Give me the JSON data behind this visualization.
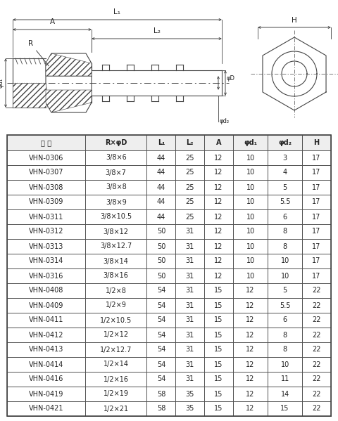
{
  "headers": [
    "型 式",
    "R×φD",
    "L₁",
    "L₂",
    "A",
    "φd₁",
    "φd₂",
    "H"
  ],
  "rows": [
    [
      "VHN-0306",
      "3/8×6",
      "44",
      "25",
      "12",
      "10",
      "3",
      "17"
    ],
    [
      "VHN-0307",
      "3/8×7",
      "44",
      "25",
      "12",
      "10",
      "4",
      "17"
    ],
    [
      "VHN-0308",
      "3/8×8",
      "44",
      "25",
      "12",
      "10",
      "5",
      "17"
    ],
    [
      "VHN-0309",
      "3/8×9",
      "44",
      "25",
      "12",
      "10",
      "5.5",
      "17"
    ],
    [
      "VHN-0311",
      "3/8×10.5",
      "44",
      "25",
      "12",
      "10",
      "6",
      "17"
    ],
    [
      "VHN-0312",
      "3/8×12",
      "50",
      "31",
      "12",
      "10",
      "8",
      "17"
    ],
    [
      "VHN-0313",
      "3/8×12.7",
      "50",
      "31",
      "12",
      "10",
      "8",
      "17"
    ],
    [
      "VHN-0314",
      "3/8×14",
      "50",
      "31",
      "12",
      "10",
      "10",
      "17"
    ],
    [
      "VHN-0316",
      "3/8×16",
      "50",
      "31",
      "12",
      "10",
      "10",
      "17"
    ],
    [
      "VHN-0408",
      "1/2×8",
      "54",
      "31",
      "15",
      "12",
      "5",
      "22"
    ],
    [
      "VHN-0409",
      "1/2×9",
      "54",
      "31",
      "15",
      "12",
      "5.5",
      "22"
    ],
    [
      "VHN-0411",
      "1/2×10.5",
      "54",
      "31",
      "15",
      "12",
      "6",
      "22"
    ],
    [
      "VHN-0412",
      "1/2×12",
      "54",
      "31",
      "15",
      "12",
      "8",
      "22"
    ],
    [
      "VHN-0413",
      "1/2×12.7",
      "54",
      "31",
      "15",
      "12",
      "8",
      "22"
    ],
    [
      "VHN-0414",
      "1/2×14",
      "54",
      "31",
      "15",
      "12",
      "10",
      "22"
    ],
    [
      "VHN-0416",
      "1/2×16",
      "54",
      "31",
      "15",
      "12",
      "11",
      "22"
    ],
    [
      "VHN-0419",
      "1/2×19",
      "58",
      "35",
      "15",
      "12",
      "14",
      "22"
    ],
    [
      "VHN-0421",
      "1/2×21",
      "58",
      "35",
      "15",
      "12",
      "15",
      "22"
    ]
  ],
  "bg_color": "#ffffff",
  "line_color": "#444444",
  "text_color": "#222222"
}
